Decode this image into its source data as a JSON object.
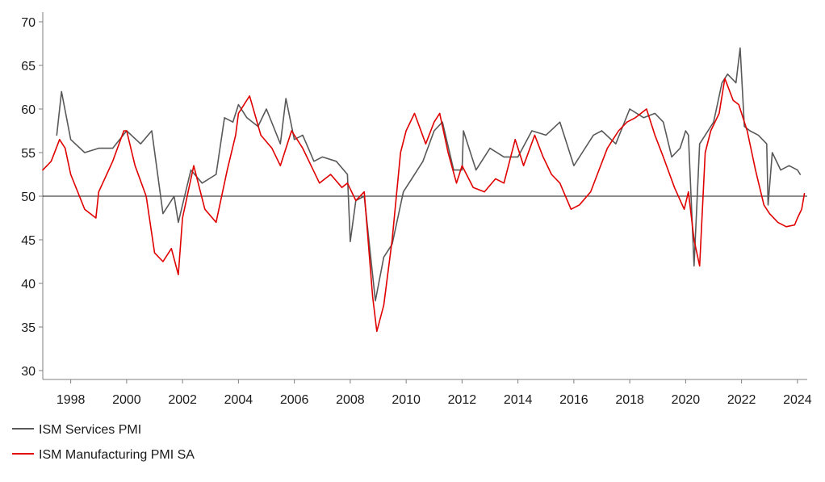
{
  "chart_data": {
    "type": "line",
    "title": "",
    "xlabel": "",
    "ylabel": "",
    "xlim": [
      1997.0,
      2024.35
    ],
    "ylim": [
      30,
      70
    ],
    "reference_line": 50,
    "x_ticks": [
      1998,
      2000,
      2002,
      2004,
      2006,
      2008,
      2010,
      2012,
      2014,
      2016,
      2018,
      2020,
      2022,
      2024
    ],
    "x_tick_labels": [
      "1998",
      "2000",
      "2002",
      "2004",
      "2006",
      "2008",
      "2010",
      "2012",
      "2014",
      "2016",
      "2018",
      "2020",
      "2022",
      "2024"
    ],
    "y_ticks": [
      30,
      35,
      40,
      45,
      50,
      55,
      60,
      65,
      70
    ],
    "y_tick_labels": [
      "30",
      "35",
      "40",
      "45",
      "50",
      "55",
      "60",
      "65",
      "70"
    ],
    "legend_position": "bottom-left",
    "series": [
      {
        "name": "ISM Services PMI",
        "color": "#595959",
        "x": [
          1997.5,
          1997.67,
          1998.0,
          1998.5,
          1999.0,
          1999.5,
          2000.0,
          2000.5,
          2000.9,
          2001.3,
          2001.7,
          2001.85,
          2002.3,
          2002.7,
          2003.2,
          2003.5,
          2003.8,
          2004.0,
          2004.3,
          2004.7,
          2005.0,
          2005.5,
          2005.7,
          2006.0,
          2006.3,
          2006.7,
          2007.0,
          2007.5,
          2007.9,
          2008.0,
          2008.2,
          2008.5,
          2008.9,
          2009.2,
          2009.5,
          2009.9,
          2010.2,
          2010.6,
          2011.0,
          2011.3,
          2011.7,
          2012.0,
          2012.05,
          2012.5,
          2013.0,
          2013.5,
          2014.0,
          2014.5,
          2015.0,
          2015.5,
          2016.0,
          2016.3,
          2016.7,
          2017.0,
          2017.5,
          2018.0,
          2018.5,
          2018.9,
          2019.2,
          2019.5,
          2019.8,
          2020.0,
          2020.1,
          2020.3,
          2020.5,
          2020.7,
          2021.0,
          2021.3,
          2021.5,
          2021.8,
          2021.95,
          2022.1,
          2022.3,
          2022.6,
          2022.9,
          2022.95,
          2023.1,
          2023.4,
          2023.7,
          2024.0,
          2024.1
        ],
        "values": [
          57.0,
          62.0,
          56.5,
          55.0,
          55.5,
          55.5,
          57.5,
          56.0,
          57.5,
          48.0,
          50.0,
          47.0,
          53.0,
          51.5,
          52.5,
          59.0,
          58.5,
          60.5,
          59.0,
          58.0,
          60.0,
          56.0,
          61.2,
          56.5,
          57.0,
          54.0,
          54.5,
          54.0,
          52.5,
          44.8,
          49.5,
          50.0,
          38.0,
          43.0,
          44.5,
          50.5,
          52.0,
          54.0,
          57.5,
          58.5,
          53.0,
          53.0,
          57.5,
          53.0,
          55.5,
          54.5,
          54.5,
          57.5,
          57.0,
          58.5,
          53.5,
          55.0,
          57.0,
          57.5,
          56.0,
          60.0,
          59.0,
          59.5,
          58.5,
          54.5,
          55.5,
          57.5,
          57.0,
          42.0,
          56.0,
          57.0,
          58.5,
          63.0,
          64.0,
          63.0,
          67.0,
          58.0,
          57.5,
          57.0,
          56.0,
          49.0,
          55.0,
          53.0,
          53.5,
          53.0,
          52.5
        ]
      },
      {
        "name": "ISM Manufacturing PMI SA",
        "color": "#e00000",
        "x": [
          1997.0,
          1997.3,
          1997.6,
          1997.8,
          1998.0,
          1998.5,
          1998.9,
          1999.0,
          1999.5,
          1999.9,
          2000.0,
          2000.3,
          2000.7,
          2001.0,
          2001.3,
          2001.6,
          2001.85,
          2002.0,
          2002.4,
          2002.8,
          2003.2,
          2003.6,
          2003.9,
          2004.0,
          2004.4,
          2004.8,
          2005.2,
          2005.5,
          2005.9,
          2006.3,
          2006.6,
          2006.9,
          2007.3,
          2007.7,
          2007.9,
          2008.2,
          2008.5,
          2008.8,
          2008.95,
          2009.2,
          2009.5,
          2009.8,
          2010.0,
          2010.3,
          2010.7,
          2011.0,
          2011.2,
          2011.5,
          2011.8,
          2012.0,
          2012.4,
          2012.8,
          2013.2,
          2013.5,
          2013.9,
          2014.2,
          2014.6,
          2014.9,
          2015.2,
          2015.5,
          2015.9,
          2016.2,
          2016.6,
          2016.9,
          2017.2,
          2017.6,
          2017.9,
          2018.2,
          2018.6,
          2018.9,
          2019.2,
          2019.6,
          2019.95,
          2020.1,
          2020.3,
          2020.5,
          2020.7,
          2020.9,
          2021.2,
          2021.4,
          2021.7,
          2021.9,
          2022.2,
          2022.5,
          2022.8,
          2023.0,
          2023.3,
          2023.6,
          2023.9,
          2024.0,
          2024.15,
          2024.25
        ],
        "values": [
          53.0,
          54.0,
          56.5,
          55.5,
          52.5,
          48.5,
          47.5,
          50.5,
          54.0,
          57.5,
          57.5,
          53.5,
          50.0,
          43.5,
          42.5,
          44.0,
          41.0,
          47.5,
          53.5,
          48.5,
          47.0,
          53.0,
          57.0,
          59.5,
          61.5,
          57.0,
          55.5,
          53.5,
          57.5,
          55.5,
          53.5,
          51.5,
          52.5,
          51.0,
          51.5,
          49.5,
          50.5,
          38.5,
          34.5,
          37.5,
          45.0,
          55.0,
          57.5,
          59.5,
          56.0,
          58.5,
          59.5,
          55.0,
          51.5,
          53.5,
          51.0,
          50.5,
          52.0,
          51.5,
          56.5,
          53.5,
          57.0,
          54.5,
          52.5,
          51.5,
          48.5,
          49.0,
          50.5,
          53.0,
          55.5,
          57.5,
          58.5,
          59.0,
          60.0,
          57.0,
          54.5,
          51.0,
          48.5,
          50.5,
          45.0,
          42.0,
          55.0,
          57.5,
          59.5,
          63.5,
          61.0,
          60.5,
          57.5,
          53.0,
          49.0,
          48.0,
          47.0,
          46.5,
          46.7,
          47.5,
          48.5,
          50.3
        ]
      }
    ]
  }
}
